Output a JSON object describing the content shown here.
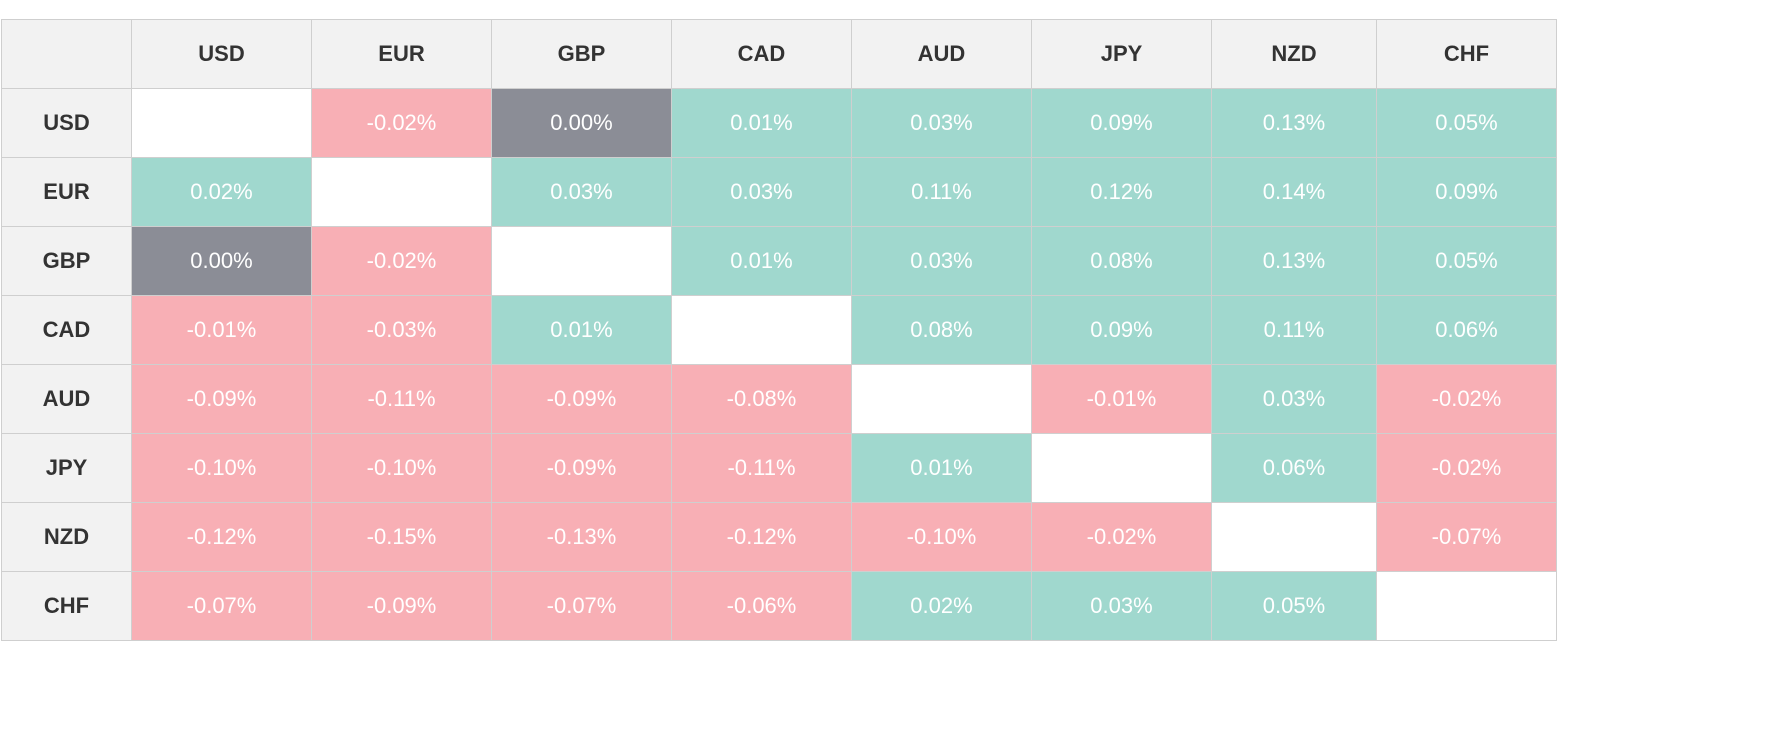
{
  "colors": {
    "positive": "#a0d8ce",
    "negative": "#f8afb5",
    "neutral": "#8b8d96",
    "diagonal": "#ffffff",
    "header_bg": "#f2f2f2",
    "header_text": "#333333",
    "cell_text": "#ffffff"
  },
  "chart_data": {
    "type": "heatmap",
    "columns": [
      "USD",
      "EUR",
      "GBP",
      "CAD",
      "AUD",
      "JPY",
      "NZD",
      "CHF"
    ],
    "rows": [
      {
        "label": "USD",
        "cells": [
          "",
          "-0.02%",
          "0.00%",
          "0.01%",
          "0.03%",
          "0.09%",
          "0.13%",
          "0.05%"
        ]
      },
      {
        "label": "EUR",
        "cells": [
          "0.02%",
          "",
          "0.03%",
          "0.03%",
          "0.11%",
          "0.12%",
          "0.14%",
          "0.09%"
        ]
      },
      {
        "label": "GBP",
        "cells": [
          "0.00%",
          "-0.02%",
          "",
          "0.01%",
          "0.03%",
          "0.08%",
          "0.13%",
          "0.05%"
        ]
      },
      {
        "label": "CAD",
        "cells": [
          "-0.01%",
          "-0.03%",
          "0.01%",
          "",
          "0.08%",
          "0.09%",
          "0.11%",
          "0.06%"
        ]
      },
      {
        "label": "AUD",
        "cells": [
          "-0.09%",
          "-0.11%",
          "-0.09%",
          "-0.08%",
          "",
          "-0.01%",
          "0.03%",
          "-0.02%"
        ]
      },
      {
        "label": "JPY",
        "cells": [
          "-0.10%",
          "-0.10%",
          "-0.09%",
          "-0.11%",
          "0.01%",
          "",
          "0.06%",
          "-0.02%"
        ]
      },
      {
        "label": "NZD",
        "cells": [
          "-0.12%",
          "-0.15%",
          "-0.13%",
          "-0.12%",
          "-0.10%",
          "-0.02%",
          "",
          "-0.07%"
        ]
      },
      {
        "label": "CHF",
        "cells": [
          "-0.07%",
          "-0.09%",
          "-0.07%",
          "-0.06%",
          "0.02%",
          "0.03%",
          "0.05%",
          ""
        ]
      }
    ]
  }
}
